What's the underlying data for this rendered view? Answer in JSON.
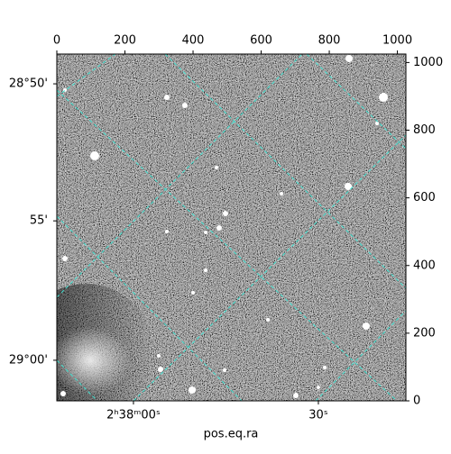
{
  "chart_data": {
    "type": "image",
    "xlabel": "pos.eq.ra",
    "xlim": [
      0,
      1025
    ],
    "xticks": [
      0,
      200,
      400,
      600,
      800,
      1000
    ],
    "ylim": [
      0,
      1025
    ],
    "yticks": [
      0,
      200,
      400,
      600,
      800,
      1000
    ],
    "wcs_xticks": [
      {
        "value": 225,
        "label": "2ʰ38ᵐ00ˢ"
      },
      {
        "value": 768,
        "label": "30ˢ"
      }
    ],
    "wcs_yticks": [
      {
        "value": 937,
        "label": "28°50'"
      },
      {
        "value": 532,
        "label": "55'"
      },
      {
        "value": 120,
        "label": "29°00'"
      }
    ],
    "grid_color": "#40e0d0"
  }
}
